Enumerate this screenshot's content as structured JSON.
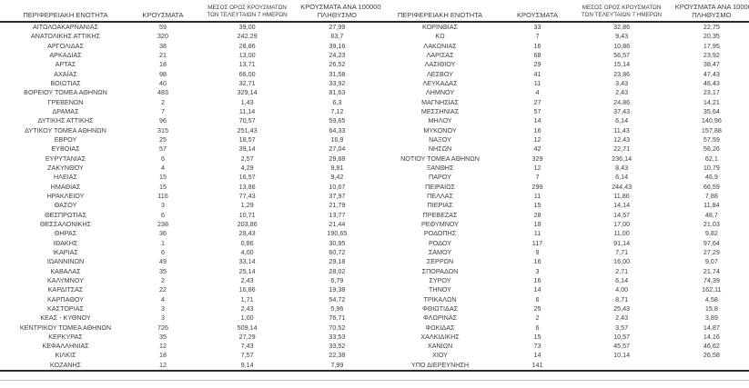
{
  "report": {
    "colors": {
      "text": "#3c3c3c",
      "rule_dark": "#2a2a2a",
      "rule_light": "#c4c4c4"
    },
    "columns": {
      "region": "ΠΕΡΙΦΕΡΕΙΑΚΗ ΕΝΟΤΗΤΑ",
      "cases": "ΚΡΟΥΣΜΑΤΑ",
      "avg7_line1": "ΜΕΣΟΣ ΟΡΟΣ ΚΡΟΥΣΜΑΤΩΝ",
      "avg7_line2": "ΤΩΝ ΤΕΛΕΥΤΑΙΩΝ 7 ΗΜΕΡΩΝ",
      "per100k_line1": "ΚΡΟΥΣΜΑΤΑ ΑΝΑ 100000",
      "per100k_line2": "ΠΛΗΘΥΣΜΟ"
    },
    "tables": [
      {
        "rows": [
          [
            "ΑΙΤΩΛΟΑΚΑΡΝΑΝΙΑΣ",
            "59",
            "39,00",
            "27,99"
          ],
          [
            "ΑΝΑΤΟΛΙΚΗΣ ΑΤΤΙΚΗΣ",
            "320",
            "242,29",
            "63,7"
          ],
          [
            "ΑΡΓΟΛΙΔΑΣ",
            "38",
            "28,86",
            "39,16"
          ],
          [
            "ΑΡΚΑΔΙΑΣ",
            "21",
            "13,00",
            "24,23"
          ],
          [
            "ΑΡΤΑΣ",
            "18",
            "13,71",
            "26,52"
          ],
          [
            "ΑΧΑΪΑΣ",
            "98",
            "66,00",
            "31,58"
          ],
          [
            "ΒΟΙΩΤΙΑΣ",
            "40",
            "32,71",
            "33,92"
          ],
          [
            "ΒΟΡΕΙΟΥ ΤΟΜΕΑ ΑΘΗΝΩΝ",
            "483",
            "329,14",
            "81,63"
          ],
          [
            "ΓΡΕΒΕΝΩΝ",
            "2",
            "1,43",
            "6,3"
          ],
          [
            "ΔΡΑΜΑΣ",
            "7",
            "11,14",
            "7,12"
          ],
          [
            "ΔΥΤΙΚΗΣ ΑΤΤΙΚΗΣ",
            "96",
            "70,57",
            "59,65"
          ],
          [
            "ΔΥΤΙΚΟΥ ΤΟΜΕΑ ΑΘΗΝΩΝ",
            "315",
            "251,43",
            "64,33"
          ],
          [
            "ΕΒΡΟΥ",
            "25",
            "18,57",
            "16,9"
          ],
          [
            "ΕΥΒΟΙΑΣ",
            "57",
            "39,14",
            "27,04"
          ],
          [
            "ΕΥΡΥΤΑΝΙΑΣ",
            "6",
            "2,57",
            "29,88"
          ],
          [
            "ΖΑΚΥΝΘΟΥ",
            "4",
            "4,29",
            "9,81"
          ],
          [
            "ΗΛΕΙΑΣ",
            "15",
            "16,57",
            "9,42"
          ],
          [
            "ΗΜΑΘΙΑΣ",
            "15",
            "13,86",
            "10,67"
          ],
          [
            "ΗΡΑΚΛΕΙΟΥ",
            "116",
            "77,43",
            "37,97"
          ],
          [
            "ΘΑΣΟΥ",
            "3",
            "1,29",
            "21,79"
          ],
          [
            "ΘΕΣΠΡΩΤΙΑΣ",
            "6",
            "10,71",
            "13,77"
          ],
          [
            "ΘΕΣΣΑΛΟΝΙΚΗΣ",
            "238",
            "203,86",
            "21,44"
          ],
          [
            "ΘΗΡΑΣ",
            "36",
            "29,43",
            "190,65"
          ],
          [
            "ΙΘΑΚΗΣ",
            "1",
            "0,86",
            "30,95"
          ],
          [
            "ΙΚΑΡΙΑΣ",
            "6",
            "4,00",
            "60,72"
          ],
          [
            "ΙΩΑΝΝΙΝΩΝ",
            "49",
            "33,14",
            "29,18"
          ],
          [
            "ΚΑΒΑΛΑΣ",
            "35",
            "25,14",
            "28,02"
          ],
          [
            "ΚΑΛΥΜΝΟΥ",
            "2",
            "2,43",
            "6,79"
          ],
          [
            "ΚΑΡΔΙΤΣΑΣ",
            "22",
            "16,86",
            "19,38"
          ],
          [
            "ΚΑΡΠΑΘΟΥ",
            "4",
            "1,71",
            "54,72"
          ],
          [
            "ΚΑΣΤΟΡΙΑΣ",
            "3",
            "2,43",
            "5,96"
          ],
          [
            "ΚΕΑΣ - ΚΥΘΝΟΥ",
            "3",
            "1,00",
            "76,71"
          ],
          [
            "ΚΕΝΤΡΙΚΟΥ ΤΟΜΕΑ ΑΘΗΝΩΝ",
            "726",
            "509,14",
            "70,52"
          ],
          [
            "ΚΕΡΚΥΡΑΣ",
            "35",
            "27,29",
            "33,53"
          ],
          [
            "ΚΕΦΑΛΛΗΝΙΑΣ",
            "12",
            "7,43",
            "33,52"
          ],
          [
            "ΚΙΛΚΙΣ",
            "18",
            "7,57",
            "22,38"
          ],
          [
            "ΚΟΖΑΝΗΣ",
            "12",
            "9,14",
            "7,99"
          ]
        ]
      },
      {
        "rows": [
          [
            "ΚΟΡΙΝΘΙΑΣ",
            "33",
            "32,86",
            "22,75"
          ],
          [
            "ΚΩ",
            "7",
            "9,43",
            "20,35"
          ],
          [
            "ΛΑΚΩΝΙΑΣ",
            "16",
            "10,86",
            "17,95"
          ],
          [
            "ΛΑΡΙΣΑΣ",
            "68",
            "56,57",
            "23,92"
          ],
          [
            "ΛΑΣΙΘΙΟΥ",
            "29",
            "15,14",
            "38,47"
          ],
          [
            "ΛΕΣΒΟΥ",
            "41",
            "23,86",
            "47,43"
          ],
          [
            "ΛΕΥΚΑΔΑΣ",
            "11",
            "3,43",
            "46,43"
          ],
          [
            "ΛΗΜΝΟΥ",
            "4",
            "2,43",
            "23,17"
          ],
          [
            "ΜΑΓΝΗΣΙΑΣ",
            "27",
            "24,86",
            "14,21"
          ],
          [
            "ΜΕΣΣΗΝΙΑΣ",
            "57",
            "37,43",
            "35,64"
          ],
          [
            "ΜΗΛΟΥ",
            "14",
            "6,14",
            "140,96"
          ],
          [
            "ΜΥΚΟΝΟΥ",
            "16",
            "11,43",
            "157,88"
          ],
          [
            "ΝΑΞΟΥ",
            "12",
            "12,43",
            "57,59"
          ],
          [
            "ΝΗΣΩΝ",
            "42",
            "22,71",
            "56,26"
          ],
          [
            "ΝΟΤΙΟΥ ΤΟΜΕΑ ΑΘΗΝΩΝ",
            "329",
            "236,14",
            "62,1"
          ],
          [
            "ΞΑΝΘΗΣ",
            "12",
            "8,43",
            "10,79"
          ],
          [
            "ΠΑΡΟΥ",
            "7",
            "6,14",
            "46,9"
          ],
          [
            "ΠΕΙΡΑΙΩΣ",
            "299",
            "244,43",
            "66,59"
          ],
          [
            "ΠΕΛΛΑΣ",
            "11",
            "11,86",
            "7,88"
          ],
          [
            "ΠΙΕΡΙΑΣ",
            "15",
            "14,14",
            "11,84"
          ],
          [
            "ΠΡΕΒΕΖΑΣ",
            "28",
            "14,57",
            "48,7"
          ],
          [
            "ΡΕΘΥΜΝΟΥ",
            "18",
            "17,00",
            "21,03"
          ],
          [
            "ΡΟΔΟΠΗΣ",
            "11",
            "11,00",
            "9,82"
          ],
          [
            "ΡΟΔΟΥ",
            "117",
            "91,14",
            "97,64"
          ],
          [
            "ΣΑΜΟΥ",
            "9",
            "7,71",
            "27,29"
          ],
          [
            "ΣΕΡΡΩΝ",
            "16",
            "16,00",
            "9,07"
          ],
          [
            "ΣΠΟΡΑΔΩΝ",
            "3",
            "2,71",
            "21,74"
          ],
          [
            "ΣΥΡΟΥ",
            "16",
            "6,14",
            "74,39"
          ],
          [
            "ΤΗΝΟΥ",
            "14",
            "4,00",
            "162,11"
          ],
          [
            "ΤΡΙΚΑΛΩΝ",
            "6",
            "8,71",
            "4,58"
          ],
          [
            "ΦΘΙΩΤΙΔΑΣ",
            "25",
            "25,43",
            "15,8"
          ],
          [
            "ΦΛΩΡΙΝΑΣ",
            "2",
            "2,43",
            "3,89"
          ],
          [
            "ΦΩΚΙΔΑΣ",
            "6",
            "3,57",
            "14,87"
          ],
          [
            "ΧΑΛΚΙΔΙΚΗΣ",
            "15",
            "10,57",
            "14,16"
          ],
          [
            "ΧΑΝΙΩΝ",
            "73",
            "45,57",
            "46,62"
          ],
          [
            "ΧΙΟΥ",
            "14",
            "10,14",
            "26,58"
          ],
          [
            "ΥΠΟ ΔΙΕΡΕΥΝΗΣΗ",
            "141",
            "",
            ""
          ]
        ]
      }
    ]
  }
}
